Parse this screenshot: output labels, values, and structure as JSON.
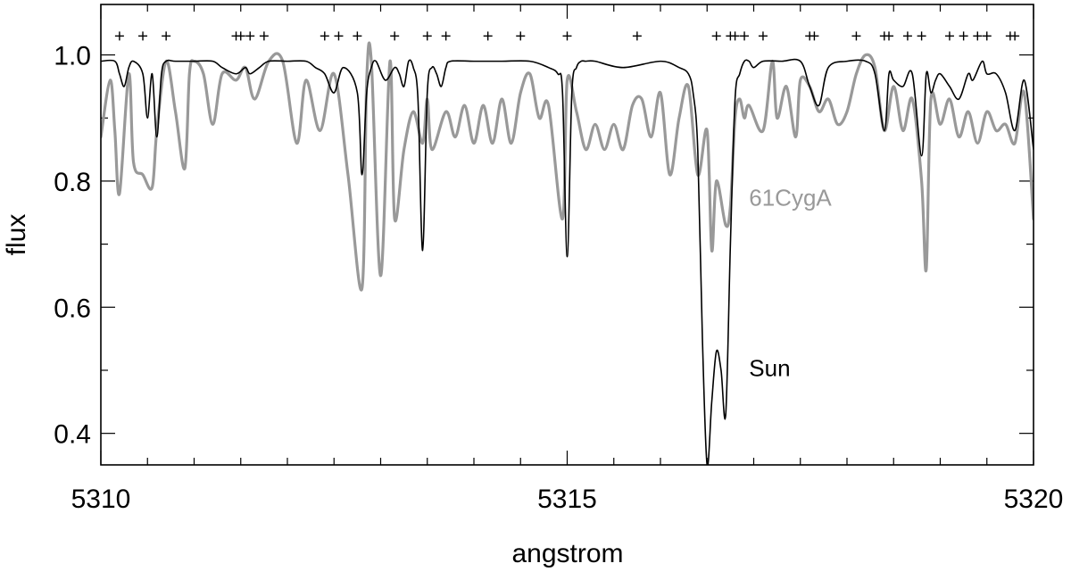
{
  "chart_data": {
    "type": "line",
    "xlabel": "angstrom",
    "ylabel": "flux",
    "xlim": [
      5310,
      5320
    ],
    "ylim": [
      0.35,
      1.08
    ],
    "x_ticks": [
      5310,
      5315,
      5320
    ],
    "x_tick_labels": [
      "5310",
      "5315",
      "5320"
    ],
    "x_minor_step": 0.5,
    "y_ticks": [
      0.4,
      0.6,
      0.8,
      1.0
    ],
    "y_tick_labels": [
      "0.4",
      "0.6",
      "0.8",
      "1.0"
    ],
    "y_minor_step": 0.1,
    "grid": false,
    "line_markers_y": 1.03,
    "line_markers_x": [
      5309.8,
      5310.0,
      5310.2,
      5310.45,
      5310.7,
      5311.45,
      5311.5,
      5311.6,
      5311.75,
      5312.4,
      5312.55,
      5312.75,
      5313.15,
      5313.5,
      5313.7,
      5314.15,
      5314.5,
      5315.0,
      5315.75,
      5316.6,
      5316.75,
      5316.8,
      5316.9,
      5317.1,
      5317.6,
      5317.65,
      5318.1,
      5318.4,
      5318.45,
      5318.65,
      5318.8,
      5319.1,
      5319.25,
      5319.4,
      5319.5,
      5319.75,
      5319.8
    ],
    "series": [
      {
        "name": "Sun",
        "color": "#000000",
        "label_at": [
          5316.95,
          0.505
        ],
        "x": [
          5310.0,
          5310.15,
          5310.2,
          5310.25,
          5310.3,
          5310.35,
          5310.45,
          5310.5,
          5310.55,
          5310.6,
          5310.65,
          5310.7,
          5310.8,
          5311.0,
          5311.2,
          5311.3,
          5311.45,
          5311.55,
          5311.6,
          5311.7,
          5311.8,
          5312.0,
          5312.2,
          5312.3,
          5312.4,
          5312.5,
          5312.6,
          5312.75,
          5312.8,
          5312.85,
          5312.9,
          5312.95,
          5313.05,
          5313.15,
          5313.2,
          5313.25,
          5313.3,
          5313.35,
          5313.4,
          5313.45,
          5313.5,
          5313.55,
          5313.6,
          5313.65,
          5313.7,
          5313.75,
          5314.0,
          5314.3,
          5314.6,
          5314.8,
          5314.9,
          5314.95,
          5315.0,
          5315.05,
          5315.1,
          5315.15,
          5315.2,
          5315.3,
          5315.6,
          5316.0,
          5316.2,
          5316.3,
          5316.35,
          5316.4,
          5316.45,
          5316.5,
          5316.55,
          5316.6,
          5316.65,
          5316.7,
          5316.75,
          5316.8,
          5316.85,
          5316.9,
          5316.95,
          5317.0,
          5317.1,
          5317.3,
          5317.5,
          5317.6,
          5317.7,
          5317.8,
          5318.0,
          5318.2,
          5318.3,
          5318.4,
          5318.45,
          5318.5,
          5318.6,
          5318.7,
          5318.8,
          5318.85,
          5318.9,
          5318.95,
          5319.0,
          5319.1,
          5319.2,
          5319.3,
          5319.35,
          5319.45,
          5319.5,
          5319.6,
          5319.7,
          5319.8,
          5319.9,
          5320.0
        ],
        "y": [
          0.99,
          0.99,
          0.97,
          0.95,
          0.98,
          0.99,
          0.97,
          0.9,
          0.97,
          0.87,
          0.97,
          0.99,
          0.99,
          0.99,
          0.99,
          0.98,
          0.97,
          0.98,
          0.97,
          0.98,
          0.99,
          0.99,
          0.99,
          0.98,
          0.97,
          0.94,
          0.98,
          0.94,
          0.81,
          0.94,
          0.98,
          0.99,
          0.96,
          0.98,
          0.97,
          0.95,
          0.99,
          0.98,
          0.93,
          0.69,
          0.94,
          0.98,
          0.97,
          0.95,
          0.98,
          0.99,
          0.99,
          0.99,
          0.99,
          0.98,
          0.97,
          0.94,
          0.68,
          0.94,
          0.98,
          0.99,
          0.99,
          0.99,
          0.98,
          0.99,
          0.98,
          0.97,
          0.94,
          0.85,
          0.55,
          0.35,
          0.45,
          0.53,
          0.5,
          0.43,
          0.7,
          0.93,
          0.97,
          0.99,
          0.99,
          0.98,
          0.99,
          0.99,
          0.99,
          0.95,
          0.92,
          0.98,
          0.99,
          0.99,
          0.97,
          0.88,
          0.97,
          0.96,
          0.95,
          0.97,
          0.84,
          0.97,
          0.94,
          0.96,
          0.97,
          0.95,
          0.93,
          0.97,
          0.96,
          0.99,
          0.97,
          0.97,
          0.94,
          0.88,
          0.96,
          0.85
        ]
      },
      {
        "name": "61CygA",
        "color": "#999999",
        "label_at": [
          5316.95,
          0.775
        ],
        "x": [
          5310.0,
          5310.1,
          5310.15,
          5310.2,
          5310.3,
          5310.35,
          5310.45,
          5310.55,
          5310.6,
          5310.7,
          5310.8,
          5310.9,
          5310.95,
          5311.0,
          5311.1,
          5311.2,
          5311.3,
          5311.45,
          5311.55,
          5311.65,
          5311.8,
          5311.95,
          5312.1,
          5312.2,
          5312.35,
          5312.5,
          5312.65,
          5312.8,
          5312.85,
          5312.9,
          5313.0,
          5313.1,
          5313.15,
          5313.25,
          5313.35,
          5313.45,
          5313.5,
          5313.55,
          5313.7,
          5313.8,
          5313.9,
          5314.0,
          5314.1,
          5314.2,
          5314.3,
          5314.4,
          5314.5,
          5314.6,
          5314.7,
          5314.8,
          5314.95,
          5315.0,
          5315.1,
          5315.2,
          5315.3,
          5315.4,
          5315.5,
          5315.6,
          5315.7,
          5315.8,
          5315.9,
          5316.0,
          5316.1,
          5316.2,
          5316.3,
          5316.4,
          5316.5,
          5316.55,
          5316.6,
          5316.7,
          5316.75,
          5316.8,
          5316.85,
          5316.9,
          5316.95,
          5317.1,
          5317.2,
          5317.25,
          5317.35,
          5317.45,
          5317.5,
          5317.6,
          5317.7,
          5317.8,
          5317.9,
          5318.0,
          5318.1,
          5318.2,
          5318.3,
          5318.4,
          5318.5,
          5318.6,
          5318.7,
          5318.8,
          5318.85,
          5318.9,
          5319.0,
          5319.1,
          5319.2,
          5319.3,
          5319.4,
          5319.5,
          5319.6,
          5319.7,
          5319.8,
          5319.9,
          5320.0
        ],
        "y": [
          0.87,
          0.96,
          0.88,
          0.78,
          0.97,
          0.83,
          0.81,
          0.79,
          0.88,
          0.99,
          0.91,
          0.82,
          0.97,
          0.99,
          0.97,
          0.89,
          0.97,
          0.96,
          0.98,
          0.93,
          0.99,
          0.99,
          0.86,
          0.96,
          0.88,
          0.97,
          0.81,
          0.63,
          0.96,
          0.99,
          0.65,
          0.99,
          0.74,
          0.85,
          0.91,
          0.86,
          0.93,
          0.85,
          0.91,
          0.87,
          0.92,
          0.86,
          0.92,
          0.86,
          0.93,
          0.86,
          0.94,
          0.97,
          0.9,
          0.92,
          0.74,
          0.96,
          0.91,
          0.85,
          0.89,
          0.85,
          0.89,
          0.85,
          0.92,
          0.93,
          0.87,
          0.94,
          0.81,
          0.9,
          0.95,
          0.81,
          0.88,
          0.69,
          0.8,
          0.73,
          0.76,
          0.9,
          0.93,
          0.9,
          0.92,
          0.88,
          0.99,
          0.9,
          0.95,
          0.87,
          0.96,
          0.95,
          0.91,
          0.93,
          0.89,
          0.91,
          0.97,
          1.0,
          0.98,
          0.88,
          0.95,
          0.88,
          0.93,
          0.8,
          0.66,
          0.93,
          0.89,
          0.93,
          0.87,
          0.91,
          0.86,
          0.91,
          0.88,
          0.89,
          0.86,
          0.94,
          0.74
        ]
      }
    ]
  }
}
